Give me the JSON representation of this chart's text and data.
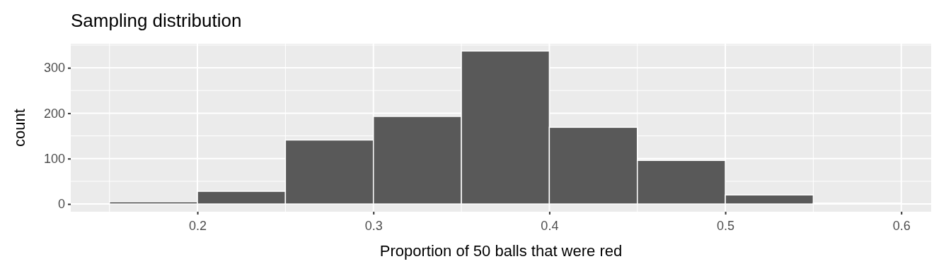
{
  "chart_data": {
    "type": "histogram",
    "title": "Sampling distribution",
    "xlabel": "Proportion of 50 balls that were red",
    "ylabel": "count",
    "bins": [
      0.15,
      0.2,
      0.25,
      0.3,
      0.35,
      0.4,
      0.45,
      0.5,
      0.55,
      0.6
    ],
    "values": [
      5,
      28,
      141,
      193,
      337,
      169,
      96,
      20,
      2
    ],
    "color": "#595959",
    "xlim": [
      0.128,
      0.617
    ],
    "xticks": [
      0.2,
      0.3,
      0.4,
      0.5,
      0.6
    ],
    "ylim": [
      -17,
      353
    ],
    "yticks": [
      0,
      100,
      200,
      300
    ],
    "grid": true
  }
}
